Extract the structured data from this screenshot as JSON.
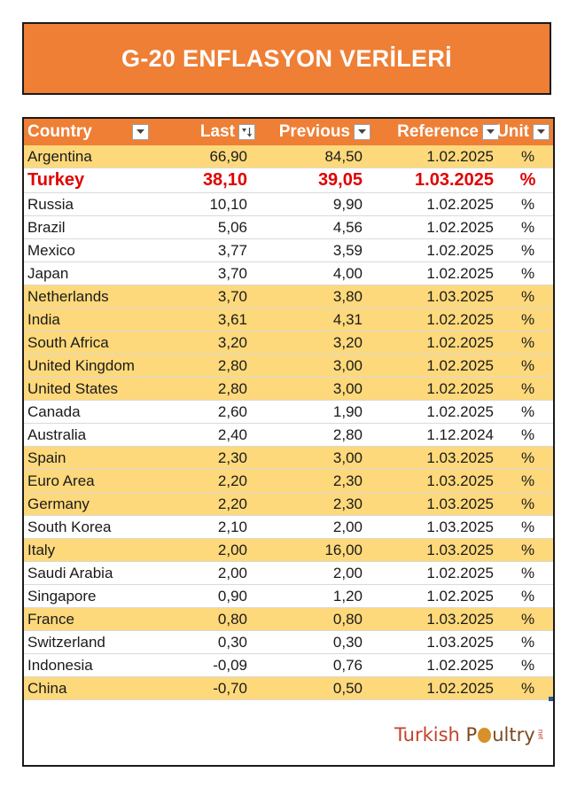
{
  "title": "G-20 ENFLASYON VERİLERİ",
  "colors": {
    "header": "#ee7f35",
    "highlight": "#fdd97b",
    "turkey": "#e00000"
  },
  "headers": {
    "country": "Country",
    "last": "Last",
    "previous": "Previous",
    "reference": "Reference",
    "unit": "Unit"
  },
  "rows": [
    {
      "country": "Argentina",
      "last": "66,90",
      "previous": "84,50",
      "reference": "1.02.2025",
      "unit": "%",
      "highlight": true
    },
    {
      "country": "Turkey",
      "last": "38,10",
      "previous": "39,05",
      "reference": "1.03.2025",
      "unit": "%",
      "highlight": false,
      "emphasis": true
    },
    {
      "country": "Russia",
      "last": "10,10",
      "previous": "9,90",
      "reference": "1.02.2025",
      "unit": "%",
      "highlight": false
    },
    {
      "country": "Brazil",
      "last": "5,06",
      "previous": "4,56",
      "reference": "1.02.2025",
      "unit": "%",
      "highlight": false
    },
    {
      "country": "Mexico",
      "last": "3,77",
      "previous": "3,59",
      "reference": "1.02.2025",
      "unit": "%",
      "highlight": false
    },
    {
      "country": "Japan",
      "last": "3,70",
      "previous": "4,00",
      "reference": "1.02.2025",
      "unit": "%",
      "highlight": false
    },
    {
      "country": "Netherlands",
      "last": "3,70",
      "previous": "3,80",
      "reference": "1.03.2025",
      "unit": "%",
      "highlight": true
    },
    {
      "country": "India",
      "last": "3,61",
      "previous": "4,31",
      "reference": "1.02.2025",
      "unit": "%",
      "highlight": true
    },
    {
      "country": "South Africa",
      "last": "3,20",
      "previous": "3,20",
      "reference": "1.02.2025",
      "unit": "%",
      "highlight": true
    },
    {
      "country": "United Kingdom",
      "last": "2,80",
      "previous": "3,00",
      "reference": "1.02.2025",
      "unit": "%",
      "highlight": true
    },
    {
      "country": "United States",
      "last": "2,80",
      "previous": "3,00",
      "reference": "1.02.2025",
      "unit": "%",
      "highlight": true
    },
    {
      "country": "Canada",
      "last": "2,60",
      "previous": "1,90",
      "reference": "1.02.2025",
      "unit": "%",
      "highlight": false
    },
    {
      "country": "Australia",
      "last": "2,40",
      "previous": "2,80",
      "reference": "1.12.2024",
      "unit": "%",
      "highlight": false
    },
    {
      "country": "Spain",
      "last": "2,30",
      "previous": "3,00",
      "reference": "1.03.2025",
      "unit": "%",
      "highlight": true
    },
    {
      "country": "Euro Area",
      "last": "2,20",
      "previous": "2,30",
      "reference": "1.03.2025",
      "unit": "%",
      "highlight": true
    },
    {
      "country": "Germany",
      "last": "2,20",
      "previous": "2,30",
      "reference": "1.03.2025",
      "unit": "%",
      "highlight": true
    },
    {
      "country": "South Korea",
      "last": "2,10",
      "previous": "2,00",
      "reference": "1.03.2025",
      "unit": "%",
      "highlight": false
    },
    {
      "country": "Italy",
      "last": "2,00",
      "previous": "16,00",
      "reference": "1.03.2025",
      "unit": "%",
      "highlight": true
    },
    {
      "country": "Saudi Arabia",
      "last": "2,00",
      "previous": "2,00",
      "reference": "1.02.2025",
      "unit": "%",
      "highlight": false
    },
    {
      "country": "Singapore",
      "last": "0,90",
      "previous": "1,20",
      "reference": "1.02.2025",
      "unit": "%",
      "highlight": false
    },
    {
      "country": "France",
      "last": "0,80",
      "previous": "0,80",
      "reference": "1.03.2025",
      "unit": "%",
      "highlight": true
    },
    {
      "country": "Switzerland",
      "last": "0,30",
      "previous": "0,30",
      "reference": "1.03.2025",
      "unit": "%",
      "highlight": false
    },
    {
      "country": "Indonesia",
      "last": "-0,09",
      "previous": "0,76",
      "reference": "1.02.2025",
      "unit": "%",
      "highlight": false
    },
    {
      "country": "China",
      "last": "-0,70",
      "previous": "0,50",
      "reference": "1.02.2025",
      "unit": "%",
      "highlight": true
    }
  ],
  "logo": {
    "part1": "Turkish",
    "part2_a": "P",
    "part2_b": "ultry",
    "suffix": "net"
  }
}
